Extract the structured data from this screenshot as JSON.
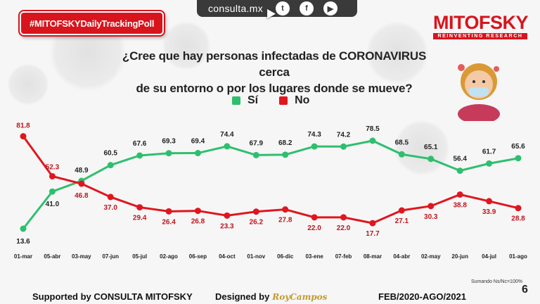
{
  "hashtag": "#MITOFSKYDailyTrackingPoll",
  "topbar": {
    "site": "consulta.mx",
    "icons": [
      "twitter-icon",
      "facebook-icon",
      "youtube-icon"
    ]
  },
  "logo": {
    "name": "MITOFSKY",
    "tagline": "REINVENTING RESEARCH"
  },
  "question_line1": "¿Cree que hay personas infectadas de CORONAVIRUS cerca",
  "question_line2": "de su entorno o por los lugares donde se mueve?",
  "colors": {
    "si": "#2ebf6e",
    "no": "#e0161f",
    "brand": "#d8141d"
  },
  "chart_data": {
    "type": "line",
    "x": [
      "01-mar",
      "05-abr",
      "03-may",
      "07-jun",
      "05-jul",
      "02-ago",
      "06-sep",
      "04-oct",
      "01-nov",
      "06-dic",
      "03-ene",
      "07-feb",
      "08-mar",
      "04-abr",
      "02-may",
      "20-jun",
      "04-jul",
      "01-ago"
    ],
    "series": [
      {
        "name": "Sí",
        "values": [
          13.6,
          41.0,
          48.9,
          60.5,
          67.6,
          69.3,
          69.4,
          74.4,
          67.9,
          68.2,
          74.3,
          74.2,
          78.5,
          68.5,
          65.1,
          56.4,
          61.7,
          65.6
        ]
      },
      {
        "name": "No",
        "values": [
          81.8,
          52.3,
          46.8,
          37.0,
          29.4,
          26.4,
          26.8,
          23.3,
          26.2,
          27.8,
          22.0,
          22.0,
          17.7,
          27.1,
          30.3,
          38.8,
          33.9,
          28.8
        ]
      }
    ],
    "ylim": [
      0,
      100
    ],
    "grid": false,
    "legend": "top-center"
  },
  "footer": {
    "supported": "Supported by  CONSULTA  MITOFSKY",
    "designed": "Designed by",
    "designer": "RoyCampos",
    "period": "FEB/2020-AGO/2021"
  },
  "note": "Sumando Ns/Nc=100%",
  "page": "6"
}
